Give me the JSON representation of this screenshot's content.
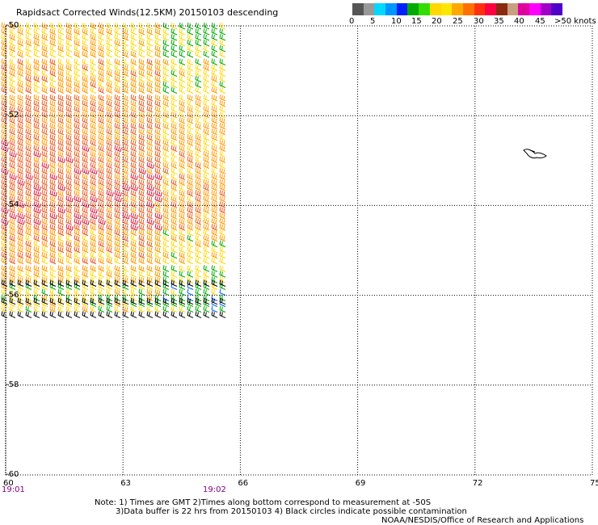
{
  "title": "Rapidsact Corrected Winds(12.5KM) 20150103 descending",
  "color_scale": {
    "labels": [
      "0",
      "5",
      "10",
      "15",
      "20",
      "25",
      "30",
      "35",
      "40",
      "45",
      ">50 knots"
    ],
    "colors": [
      "#555555",
      "#999999",
      "#00d8ff",
      "#0096ff",
      "#0020ff",
      "#00aa00",
      "#33dd00",
      "#ffd800",
      "#ffe600",
      "#ffa800",
      "#ff7000",
      "#ff3010",
      "#ff0040",
      "#8b2a10",
      "#c8a080",
      "#e000a0",
      "#ff00ff",
      "#a000c8",
      "#5000c8"
    ]
  },
  "map": {
    "lat_labels": [
      "-50",
      "-52",
      "-54",
      "-56",
      "-58",
      "-60"
    ],
    "lon_labels": [
      "60",
      "63",
      "66",
      "69",
      "72",
      "75"
    ],
    "time_labels": [
      "19:01",
      "19:02"
    ]
  },
  "notes": {
    "line1": "Note: 1) Times are GMT 2)Times along bottom correspond to measurement at -50S",
    "line2": "3)Data buffer is 22 hrs from 20150103 4) Black circles indicate possible contamination",
    "credit": "NOAA/NESDIS/Office of Research and Applications"
  },
  "wind_data": {
    "lon_range": [
      60,
      75
    ],
    "lat_range": [
      -60,
      -50
    ],
    "swath_lon_range": [
      60,
      65.8
    ],
    "bands": [
      {
        "lat": [
          -50.0,
          -50.8
        ],
        "knots": 24
      },
      {
        "lat": [
          -50.8,
          -51.6
        ],
        "knots": 27
      },
      {
        "lat": [
          -51.6,
          -52.6
        ],
        "knots": 30
      },
      {
        "lat": [
          -52.6,
          -53.6
        ],
        "knots": 32
      },
      {
        "lat": [
          -53.6,
          -54.6
        ],
        "knots": 33
      },
      {
        "lat": [
          -54.6,
          -55.4
        ],
        "knots": 28
      },
      {
        "lat": [
          -55.4,
          -55.8
        ],
        "knots": 25
      },
      {
        "lat": [
          -55.8,
          -56.5
        ],
        "knots": 22
      }
    ],
    "contamination_rows_lat": [
      -55.8,
      -56.2,
      -56.5
    ]
  }
}
